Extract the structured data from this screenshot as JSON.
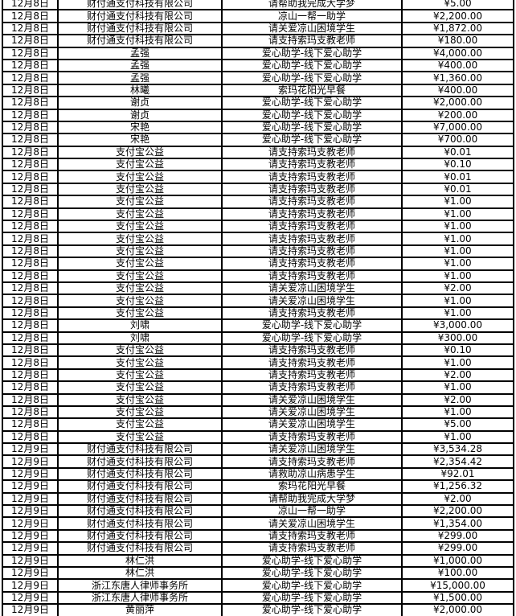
{
  "table": {
    "rows": [
      {
        "date": "12月8日",
        "donor": "财付通支付科技有限公司",
        "purpose": "请帮助我完成大学梦",
        "amount": "¥5.00"
      },
      {
        "date": "12月8日",
        "donor": "财付通支付科技有限公司",
        "purpose": "凉山一帮一助学",
        "amount": "¥2,200.00"
      },
      {
        "date": "12月8日",
        "donor": "财付通支付科技有限公司",
        "purpose": "请关爱凉山困境学生",
        "amount": "¥1,872.00"
      },
      {
        "date": "12月8日",
        "donor": "财付通支付科技有限公司",
        "purpose": "请支持索玛支教老师",
        "amount": "¥180.00"
      },
      {
        "date": "12月8日",
        "donor": "孟强",
        "purpose": "爱心助学-线下爱心助学",
        "amount": "¥4,000.00"
      },
      {
        "date": "12月8日",
        "donor": "孟强",
        "purpose": "爱心助学-线下爱心助学",
        "amount": "¥400.00"
      },
      {
        "date": "12月8日",
        "donor": "孟强",
        "purpose": "爱心助学-线下爱心助学",
        "amount": "¥1,360.00"
      },
      {
        "date": "12月8日",
        "donor": "林曦",
        "purpose": "索玛花阳光早餐",
        "amount": "¥400.00"
      },
      {
        "date": "12月8日",
        "donor": "谢贞",
        "purpose": "爱心助学-线下爱心助学",
        "amount": "¥2,000.00"
      },
      {
        "date": "12月8日",
        "donor": "谢贞",
        "purpose": "爱心助学-线下爱心助学",
        "amount": "¥200.00"
      },
      {
        "date": "12月8日",
        "donor": "宋艳",
        "purpose": "爱心助学-线下爱心助学",
        "amount": "¥7,000.00"
      },
      {
        "date": "12月8日",
        "donor": "宋艳",
        "purpose": "爱心助学-线下爱心助学",
        "amount": "¥700.00"
      },
      {
        "date": "12月8日",
        "donor": "支付宝公益",
        "purpose": "请支持索玛支教老师",
        "amount": "¥0.01"
      },
      {
        "date": "12月8日",
        "donor": "支付宝公益",
        "purpose": "请支持索玛支教老师",
        "amount": "¥0.10"
      },
      {
        "date": "12月8日",
        "donor": "支付宝公益",
        "purpose": "请支持索玛支教老师",
        "amount": "¥0.01"
      },
      {
        "date": "12月8日",
        "donor": "支付宝公益",
        "purpose": "请支持索玛支教老师",
        "amount": "¥0.01"
      },
      {
        "date": "12月8日",
        "donor": "支付宝公益",
        "purpose": "请支持索玛支教老师",
        "amount": "¥1.00"
      },
      {
        "date": "12月8日",
        "donor": "支付宝公益",
        "purpose": "请支持索玛支教老师",
        "amount": "¥1.00"
      },
      {
        "date": "12月8日",
        "donor": "支付宝公益",
        "purpose": "请支持索玛支教老师",
        "amount": "¥1.00"
      },
      {
        "date": "12月8日",
        "donor": "支付宝公益",
        "purpose": "请支持索玛支教老师",
        "amount": "¥1.00"
      },
      {
        "date": "12月8日",
        "donor": "支付宝公益",
        "purpose": "请支持索玛支教老师",
        "amount": "¥1.00"
      },
      {
        "date": "12月8日",
        "donor": "支付宝公益",
        "purpose": "请支持索玛支教老师",
        "amount": "¥1.00"
      },
      {
        "date": "12月8日",
        "donor": "支付宝公益",
        "purpose": "请支持索玛支教老师",
        "amount": "¥1.00"
      },
      {
        "date": "12月8日",
        "donor": "支付宝公益",
        "purpose": "请关爱凉山困境学生",
        "amount": "¥2.00"
      },
      {
        "date": "12月8日",
        "donor": "支付宝公益",
        "purpose": "请关爱凉山困境学生",
        "amount": "¥1.00"
      },
      {
        "date": "12月8日",
        "donor": "支付宝公益",
        "purpose": "请支持索玛支教老师",
        "amount": "¥1.00"
      },
      {
        "date": "12月8日",
        "donor": "刘啸",
        "purpose": "爱心助学-线下爱心助学",
        "amount": "¥3,000.00"
      },
      {
        "date": "12月8日",
        "donor": "刘啸",
        "purpose": "爱心助学-线下爱心助学",
        "amount": "¥300.00"
      },
      {
        "date": "12月8日",
        "donor": "支付宝公益",
        "purpose": "请支持索玛支教老师",
        "amount": "¥0.10"
      },
      {
        "date": "12月8日",
        "donor": "支付宝公益",
        "purpose": "请支持索玛支教老师",
        "amount": "¥1.00"
      },
      {
        "date": "12月8日",
        "donor": "支付宝公益",
        "purpose": "请支持索玛支教老师",
        "amount": "¥2.00"
      },
      {
        "date": "12月8日",
        "donor": "支付宝公益",
        "purpose": "请支持索玛支教老师",
        "amount": "¥1.00"
      },
      {
        "date": "12月8日",
        "donor": "支付宝公益",
        "purpose": "请关爱凉山困境学生",
        "amount": "¥2.00"
      },
      {
        "date": "12月8日",
        "donor": "支付宝公益",
        "purpose": "请关爱凉山困境学生",
        "amount": "¥1.00"
      },
      {
        "date": "12月8日",
        "donor": "支付宝公益",
        "purpose": "请关爱凉山困境学生",
        "amount": "¥5.00"
      },
      {
        "date": "12月8日",
        "donor": "支付宝公益",
        "purpose": "请支持索玛支教老师",
        "amount": "¥1.00"
      },
      {
        "date": "12月9日",
        "donor": "财付通支付科技有限公司",
        "purpose": "请关爱凉山困境学生",
        "amount": "¥3,534.28"
      },
      {
        "date": "12月9日",
        "donor": "财付通支付科技有限公司",
        "purpose": "请支持索玛支教老师",
        "amount": "¥2,354.42"
      },
      {
        "date": "12月9日",
        "donor": "财付通支付科技有限公司",
        "purpose": "请救助凉山病患学生",
        "amount": "¥92.01"
      },
      {
        "date": "12月9日",
        "donor": "财付通支付科技有限公司",
        "purpose": "索玛花阳光早餐",
        "amount": "¥1,256.32"
      },
      {
        "date": "12月9日",
        "donor": "财付通支付科技有限公司",
        "purpose": "请帮助我完成大学梦",
        "amount": "¥2.00"
      },
      {
        "date": "12月9日",
        "donor": "财付通支付科技有限公司",
        "purpose": "凉山一帮一助学",
        "amount": "¥2,200.00"
      },
      {
        "date": "12月9日",
        "donor": "财付通支付科技有限公司",
        "purpose": "请关爱凉山困境学生",
        "amount": "¥1,354.00"
      },
      {
        "date": "12月9日",
        "donor": "财付通支付科技有限公司",
        "purpose": "请支持索玛支教老师",
        "amount": "¥299.00"
      },
      {
        "date": "12月9日",
        "donor": "财付通支付科技有限公司",
        "purpose": "请支持索玛支教老师",
        "amount": "¥299.00"
      },
      {
        "date": "12月9日",
        "donor": "林仁洪",
        "purpose": "爱心助学-线下爱心助学",
        "amount": "¥1,000.00"
      },
      {
        "date": "12月9日",
        "donor": "林仁洪",
        "purpose": "爱心助学-线下爱心助学",
        "amount": "¥100.00"
      },
      {
        "date": "12月9日",
        "donor": "浙江东唐人律师事务所",
        "purpose": "爱心助学-线下爱心助学",
        "amount": "¥15,000.00"
      },
      {
        "date": "12月9日",
        "donor": "浙江东唐人律师事务所",
        "purpose": "爱心助学-线下爱心助学",
        "amount": "¥1,500.00"
      },
      {
        "date": "12月9日",
        "donor": "黄丽萍",
        "purpose": "爱心助学-线下爱心助学",
        "amount": "¥2,000.00"
      }
    ],
    "colors": {
      "grid": "#000000",
      "text": "#000000",
      "background": "#ffffff"
    }
  }
}
